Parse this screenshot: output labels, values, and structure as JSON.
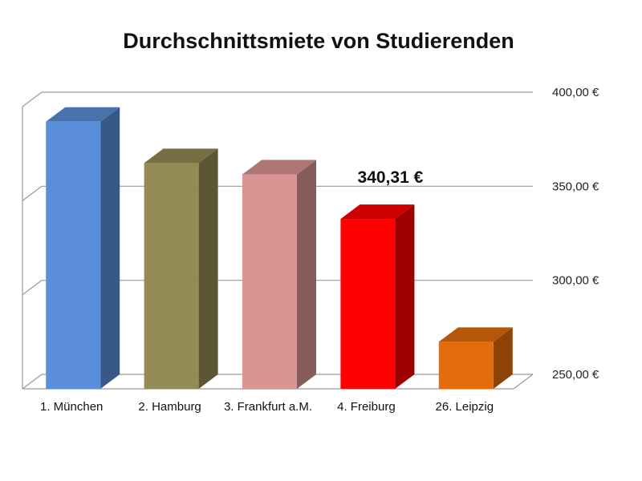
{
  "chart_data": {
    "type": "bar",
    "title": "Durchschnittsmiete von Studierenden",
    "xlabel": "",
    "ylabel": "",
    "ylim": [
      250,
      400
    ],
    "y_ticks": [
      "250,00 €",
      "300,00 €",
      "350,00 €",
      "400,00 €"
    ],
    "y_tick_values": [
      250,
      300,
      350,
      400
    ],
    "y_axis_side": "right",
    "grid": true,
    "three_d": true,
    "legend": "none",
    "categories": [
      "1. München",
      "2. Hamburg",
      "3. Frankfurt a.M.",
      "4. Freiburg",
      "26. Leipzig"
    ],
    "values": [
      392,
      370,
      364,
      340.31,
      275
    ],
    "colors": [
      "#5b8ed8",
      "#948a54",
      "#d99594",
      "#ff0000",
      "#e46c0a"
    ],
    "annotation": {
      "category": "4. Freiburg",
      "text": "340,31 €"
    }
  }
}
